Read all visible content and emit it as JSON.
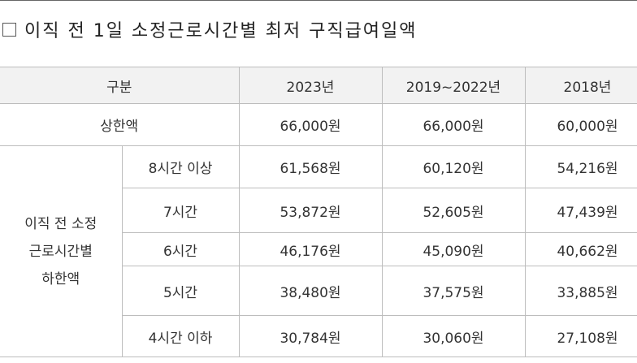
{
  "title": "이직 전 1일 소정근로시간별 최저 구직급여일액",
  "table": {
    "headers": [
      "구분",
      "2023년",
      "2019~2022년",
      "2018년"
    ],
    "upper_limit": {
      "label": "상한액",
      "values": [
        "66,000원",
        "66,000원",
        "60,000원"
      ]
    },
    "lower_limit_group": {
      "label_lines": [
        "이직 전 소정",
        "근로시간별",
        "하한액"
      ],
      "rows": [
        {
          "label": "8시간 이상",
          "values": [
            "61,568원",
            "60,120원",
            "54,216원"
          ]
        },
        {
          "label": "7시간",
          "values": [
            "53,872원",
            "52,605원",
            "47,439원"
          ]
        },
        {
          "label": "6시간",
          "values": [
            "46,176원",
            "45,090원",
            "40,662원"
          ]
        },
        {
          "label": "5시간",
          "values": [
            "38,480원",
            "37,575원",
            "33,885원"
          ]
        },
        {
          "label": "4시간 이하",
          "values": [
            "30,784원",
            "30,060원",
            "27,108원"
          ]
        }
      ]
    }
  }
}
